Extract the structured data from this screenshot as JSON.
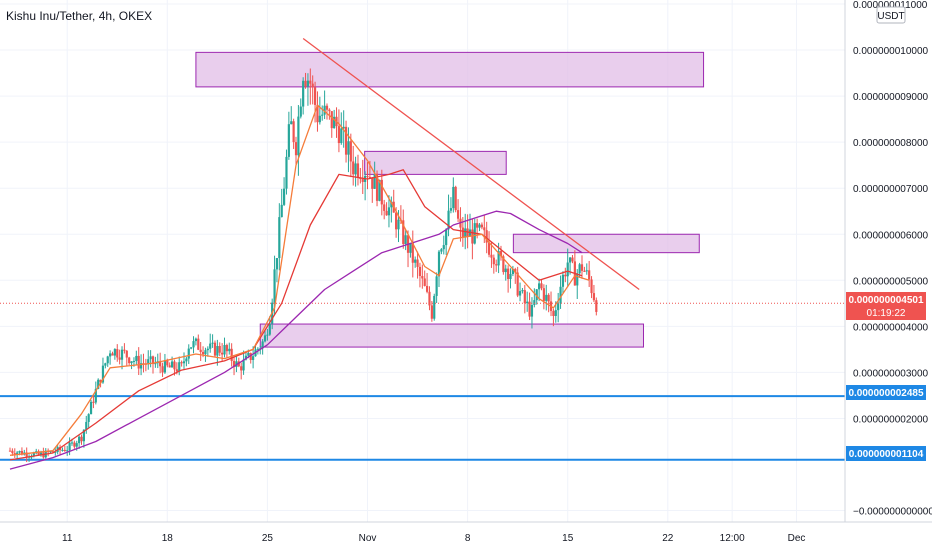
{
  "header": {
    "title": "Kishu Inu/Tether, 4h, OKEX"
  },
  "colors": {
    "up": "#26a69a",
    "down": "#ef5350",
    "ema_fast": "#f57c3a",
    "ema_mid": "#e53935",
    "ema_slow": "#9c27b0",
    "trendline": "#ef5350",
    "zone_fill": "#e1bee7",
    "zone_stroke": "#9c27b0",
    "level_line": "#1e88e5",
    "price_badge": "#ef5350",
    "level_badge": "#1e88e5"
  },
  "chart_data": {
    "type": "candlestick",
    "title": "Kishu Inu/Tether, 4h, OKEX",
    "currency": "USDT",
    "ylim": [
      0.0,
      1.1e-08
    ],
    "y_ticks": [
      {
        "value": 1.1e-08,
        "label": "0.000000011000"
      },
      {
        "value": 1e-08,
        "label": "0.000000010000"
      },
      {
        "value": 9e-09,
        "label": "0.000000009000"
      },
      {
        "value": 8e-09,
        "label": "0.000000008000"
      },
      {
        "value": 7e-09,
        "label": "0.000000007000"
      },
      {
        "value": 6e-09,
        "label": "0.000000006000"
      },
      {
        "value": 5e-09,
        "label": "0.000000005000"
      },
      {
        "value": 4e-09,
        "label": "0.000000004000"
      },
      {
        "value": 3e-09,
        "label": "0.000000003000"
      },
      {
        "value": 2e-09,
        "label": "0.000000002000"
      },
      {
        "value": -0.0,
        "label": "−0.000000000000"
      }
    ],
    "x_ticks": [
      {
        "day": 11,
        "label": "11"
      },
      {
        "day": 18,
        "label": "18"
      },
      {
        "day": 25,
        "label": "25"
      },
      {
        "day": 32,
        "label": "Nov"
      },
      {
        "day": 39,
        "label": "8"
      },
      {
        "day": 46,
        "label": "15"
      },
      {
        "day": 53,
        "label": "22"
      },
      {
        "day": 57.5,
        "label": "12:00"
      },
      {
        "day": 62,
        "label": "Dec"
      }
    ],
    "key_points": [
      [
        7,
        1.3
      ],
      [
        9,
        1.2
      ],
      [
        11,
        1.35
      ],
      [
        12,
        1.6
      ],
      [
        13,
        2.6
      ],
      [
        14,
        3.5
      ],
      [
        15,
        3.4
      ],
      [
        16,
        3.2
      ],
      [
        17,
        3.2
      ],
      [
        18,
        3.1
      ],
      [
        19,
        3.1
      ],
      [
        19.5,
        3.6
      ],
      [
        20,
        3.6
      ],
      [
        21,
        3.5
      ],
      [
        22,
        3.5
      ],
      [
        23,
        3.1
      ],
      [
        24,
        3.4
      ],
      [
        24.8,
        3.7
      ],
      [
        25.2,
        4.3
      ],
      [
        26,
        6.6
      ],
      [
        26.6,
        8.4
      ],
      [
        27,
        8.0
      ],
      [
        27.5,
        9.6
      ],
      [
        28,
        9.3
      ],
      [
        28.5,
        8.6
      ],
      [
        29,
        8.6
      ],
      [
        30,
        8.3
      ],
      [
        31,
        7.5
      ],
      [
        32,
        7.4
      ],
      [
        33,
        6.8
      ],
      [
        34,
        6.3
      ],
      [
        35,
        5.6
      ],
      [
        36,
        4.8
      ],
      [
        36.5,
        4.3
      ],
      [
        37,
        5.7
      ],
      [
        37.5,
        6.1
      ],
      [
        38,
        6.8
      ],
      [
        38.5,
        6.0
      ],
      [
        39,
        6.0
      ],
      [
        40,
        6.0
      ],
      [
        41,
        5.5
      ],
      [
        42,
        5.2
      ],
      [
        43,
        4.5
      ],
      [
        43.5,
        4.3
      ],
      [
        44,
        4.9
      ],
      [
        44.5,
        4.6
      ],
      [
        45,
        4.2
      ],
      [
        45.5,
        4.9
      ],
      [
        46,
        5.4
      ],
      [
        46.5,
        5.1
      ],
      [
        47,
        5.3
      ],
      [
        47.5,
        5.0
      ],
      [
        48,
        4.5
      ]
    ],
    "ema_slow_points": [
      [
        7,
        0.9
      ],
      [
        10,
        1.15
      ],
      [
        13,
        1.5
      ],
      [
        16,
        2.0
      ],
      [
        19,
        2.5
      ],
      [
        22,
        3.0
      ],
      [
        25,
        3.6
      ],
      [
        27,
        4.2
      ],
      [
        29,
        4.8
      ],
      [
        31,
        5.2
      ],
      [
        33,
        5.6
      ],
      [
        35,
        5.8
      ],
      [
        37,
        6.0
      ],
      [
        38,
        6.2
      ],
      [
        40,
        6.4
      ],
      [
        41,
        6.5
      ],
      [
        42,
        6.45
      ],
      [
        44,
        6.1
      ],
      [
        46,
        5.8
      ],
      [
        47,
        5.6
      ]
    ],
    "ema_mid_points": [
      [
        7,
        1.1
      ],
      [
        10,
        1.25
      ],
      [
        13,
        1.9
      ],
      [
        16,
        2.6
      ],
      [
        19,
        3.05
      ],
      [
        22,
        3.25
      ],
      [
        24,
        3.5
      ],
      [
        26,
        4.5
      ],
      [
        28,
        6.2
      ],
      [
        30,
        7.3
      ],
      [
        32,
        7.2
      ],
      [
        33.5,
        7.3
      ],
      [
        34.5,
        7.4
      ],
      [
        36,
        6.6
      ],
      [
        38,
        6.1
      ],
      [
        40,
        6.0
      ],
      [
        42,
        5.5
      ],
      [
        44,
        5.0
      ],
      [
        46,
        5.2
      ],
      [
        47,
        5.1
      ]
    ],
    "ema_fast_points": [
      [
        7,
        1.2
      ],
      [
        10,
        1.3
      ],
      [
        12,
        2.1
      ],
      [
        14,
        3.1
      ],
      [
        17,
        3.2
      ],
      [
        20,
        3.4
      ],
      [
        22,
        3.3
      ],
      [
        24,
        3.5
      ],
      [
        25.5,
        4.4
      ],
      [
        27,
        7.5
      ],
      [
        28.5,
        8.8
      ],
      [
        30,
        8.4
      ],
      [
        32,
        7.6
      ],
      [
        34,
        6.5
      ],
      [
        36,
        5.3
      ],
      [
        37,
        5.1
      ],
      [
        38,
        5.9
      ],
      [
        40,
        6.0
      ],
      [
        42,
        5.3
      ],
      [
        44,
        4.6
      ],
      [
        45,
        4.4
      ],
      [
        46.5,
        5.1
      ],
      [
        47.5,
        5.0
      ]
    ],
    "trendline": {
      "from": [
        27.5,
        10.25
      ],
      "to": [
        51,
        4.8
      ]
    },
    "zones": [
      {
        "x0": 20,
        "x1": 55.5,
        "y0": 9.2,
        "y1": 9.95
      },
      {
        "x0": 31.8,
        "x1": 41.7,
        "y0": 7.3,
        "y1": 7.8
      },
      {
        "x0": 42.2,
        "x1": 55.2,
        "y0": 5.6,
        "y1": 6.0
      },
      {
        "x0": 24.5,
        "x1": 51.3,
        "y0": 3.55,
        "y1": 4.05
      }
    ],
    "price_scale": 1e-09,
    "current_price_line": 4.501
  },
  "price_axis": {
    "currency_label": "USDT",
    "current_price": "0.000000004501",
    "countdown": "01:19:22",
    "level_upper": "0.000000002485",
    "level_lower": "0.000000001104"
  }
}
